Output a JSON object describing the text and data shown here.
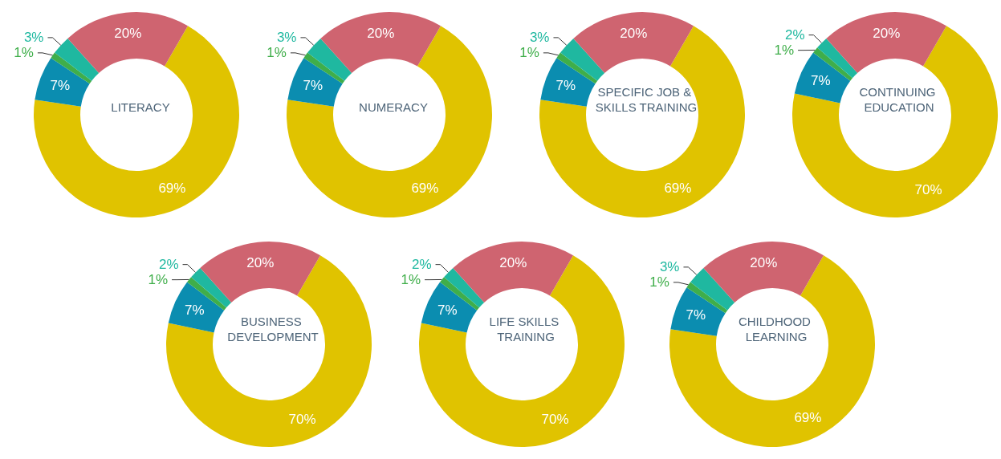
{
  "chart_data": [
    {
      "type": "donut",
      "title": "LITERACY",
      "categories": [
        null,
        null,
        null,
        null,
        null
      ],
      "values": [
        69,
        7,
        1,
        3,
        20
      ],
      "value_labels": [
        "69%",
        "7%",
        "1%",
        "3%",
        "20%"
      ],
      "colors": [
        "#e0c300",
        "#0b8db0",
        "#3fae4a",
        "#1fb8a0",
        "#cf6470"
      ],
      "legend": false
    },
    {
      "type": "donut",
      "title": "NUMERACY",
      "categories": [
        null,
        null,
        null,
        null,
        null
      ],
      "values": [
        69,
        7,
        1,
        3,
        20
      ],
      "value_labels": [
        "69%",
        "7%",
        "1%",
        "3%",
        "20%"
      ],
      "colors": [
        "#e0c300",
        "#0b8db0",
        "#3fae4a",
        "#1fb8a0",
        "#cf6470"
      ],
      "legend": false
    },
    {
      "type": "donut",
      "title": "SPECIFIC JOB & SKILLS TRAINING",
      "categories": [
        null,
        null,
        null,
        null,
        null
      ],
      "values": [
        69,
        7,
        1,
        3,
        20
      ],
      "value_labels": [
        "69%",
        "7%",
        "1%",
        "3%",
        "20%"
      ],
      "colors": [
        "#e0c300",
        "#0b8db0",
        "#3fae4a",
        "#1fb8a0",
        "#cf6470"
      ],
      "legend": false
    },
    {
      "type": "donut",
      "title": "CONTINUING EDUCATION",
      "categories": [
        null,
        null,
        null,
        null,
        null
      ],
      "values": [
        70,
        7,
        1,
        2,
        20
      ],
      "value_labels": [
        "70%",
        "7%",
        "1%",
        "2%",
        "20%"
      ],
      "colors": [
        "#e0c300",
        "#0b8db0",
        "#3fae4a",
        "#1fb8a0",
        "#cf6470"
      ],
      "legend": false
    },
    {
      "type": "donut",
      "title": "BUSINESS DEVELOPMENT",
      "categories": [
        null,
        null,
        null,
        null,
        null
      ],
      "values": [
        70,
        7,
        1,
        2,
        20
      ],
      "value_labels": [
        "70%",
        "7%",
        "1%",
        "2%",
        "20%"
      ],
      "colors": [
        "#e0c300",
        "#0b8db0",
        "#3fae4a",
        "#1fb8a0",
        "#cf6470"
      ],
      "legend": false
    },
    {
      "type": "donut",
      "title": "LIFE SKILLS TRAINING",
      "categories": [
        null,
        null,
        null,
        null,
        null
      ],
      "values": [
        70,
        7,
        1,
        2,
        20
      ],
      "value_labels": [
        "70%",
        "7%",
        "1%",
        "2%",
        "20%"
      ],
      "colors": [
        "#e0c300",
        "#0b8db0",
        "#3fae4a",
        "#1fb8a0",
        "#cf6470"
      ],
      "legend": false
    },
    {
      "type": "donut",
      "title": "CHILDHOOD LEARNING",
      "categories": [
        null,
        null,
        null,
        null,
        null
      ],
      "values": [
        69,
        7,
        1,
        3,
        20
      ],
      "value_labels": [
        "69%",
        "7%",
        "1%",
        "3%",
        "20%"
      ],
      "colors": [
        "#e0c300",
        "#0b8db0",
        "#3fae4a",
        "#1fb8a0",
        "#cf6470"
      ],
      "legend": false
    }
  ]
}
